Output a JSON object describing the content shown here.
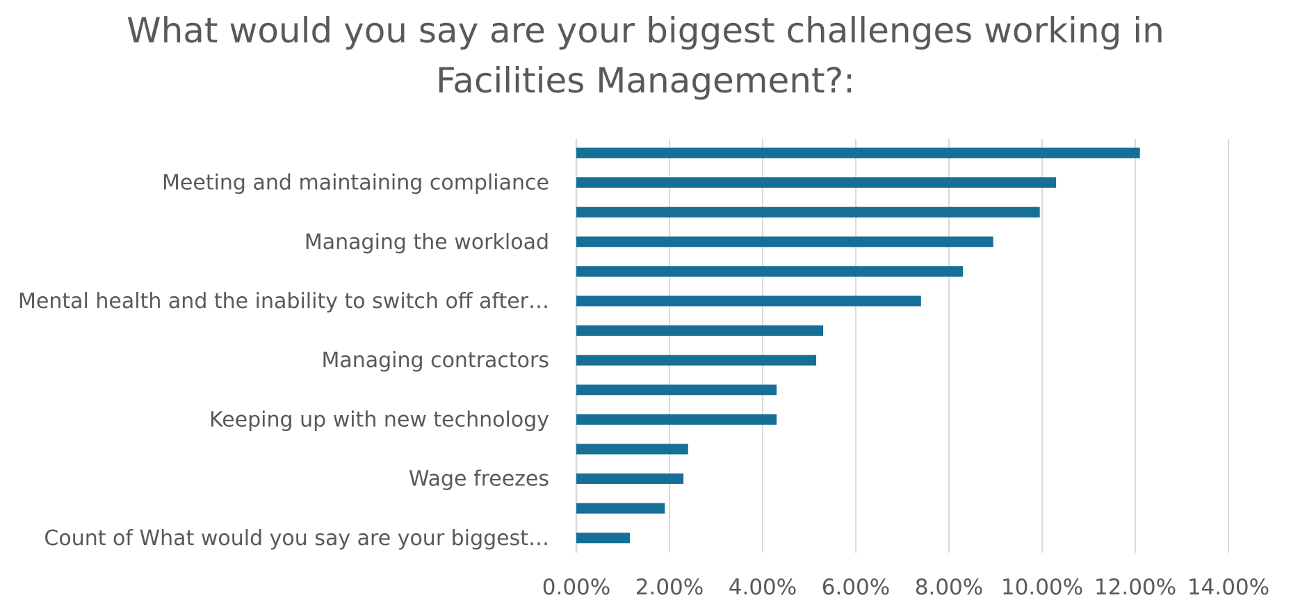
{
  "chart_data": {
    "type": "bar",
    "orientation": "horizontal",
    "title": "What would you say are your biggest challenges working in\nFacilities Management?:",
    "categories": [
      "",
      "Meeting and maintaining compliance",
      "",
      "Managing the workload",
      "",
      "Mental health and the inability to switch off after…",
      "",
      "Managing contractors",
      "",
      "Keeping up with new technology",
      "",
      "Wage freezes",
      "",
      "Count of What would you say are your biggest…"
    ],
    "values": [
      12.1,
      10.3,
      9.95,
      8.95,
      8.3,
      7.4,
      5.3,
      5.15,
      4.3,
      4.3,
      2.4,
      2.3,
      1.9,
      1.15
    ],
    "xlim": [
      0,
      14
    ],
    "x_ticks": [
      "0.00%",
      "2.00%",
      "4.00%",
      "6.00%",
      "8.00%",
      "10.00%",
      "12.00%",
      "14.00%"
    ],
    "x_tick_values": [
      0,
      2,
      4,
      6,
      8,
      10,
      12,
      14
    ],
    "grid": "vertical",
    "legend": "none",
    "bar_color": "#156f96",
    "grid_color": "#d9d9d9"
  }
}
